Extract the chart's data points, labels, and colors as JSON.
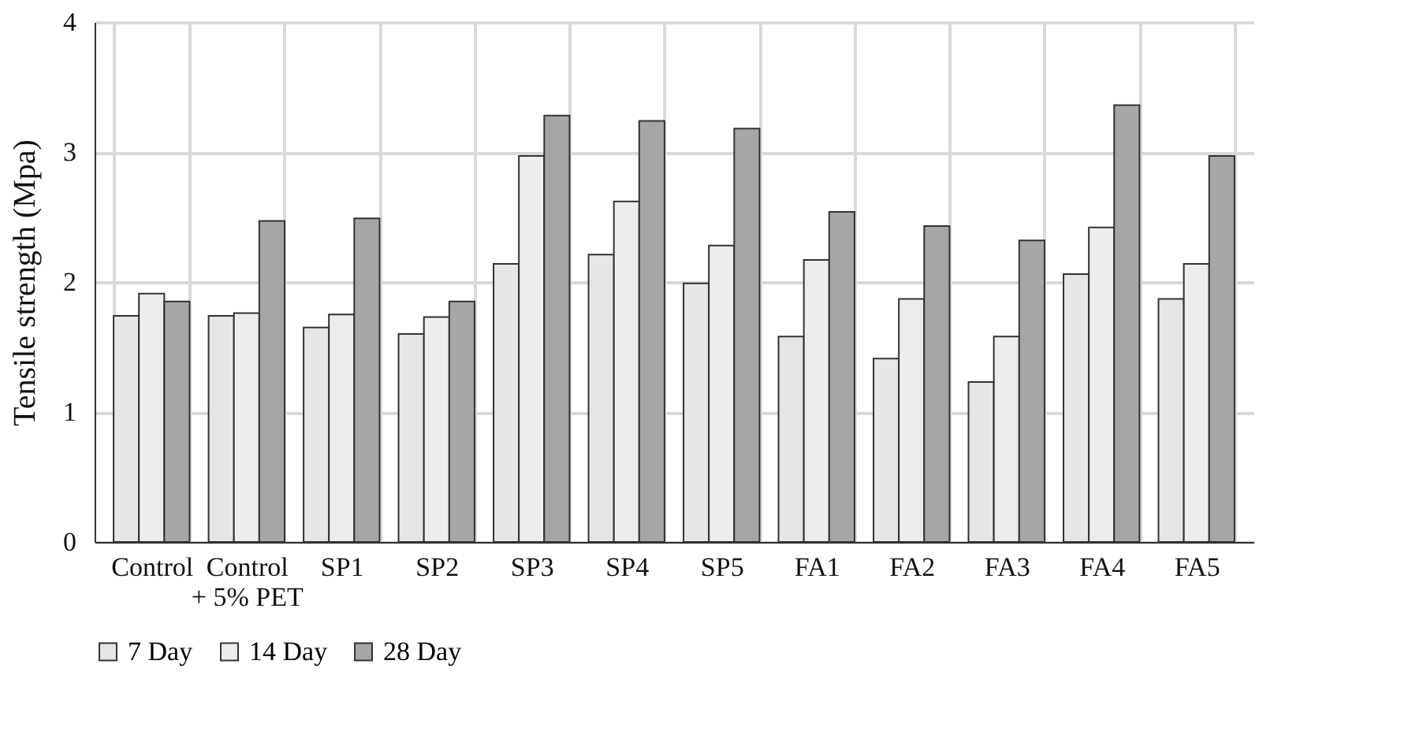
{
  "chart_data": {
    "type": "bar",
    "ylabel": "Tensile strength (Mpa)",
    "categories": [
      "Control",
      "Control + 5% PET",
      "SP1",
      "SP2",
      "SP3",
      "SP4",
      "SP5",
      "FA1",
      "FA2",
      "FA3",
      "FA4",
      "FA5"
    ],
    "series": [
      {
        "name": "7 Day",
        "color": "#e6e6e6",
        "values": [
          1.74,
          1.74,
          1.65,
          1.6,
          2.14,
          2.21,
          1.99,
          1.58,
          1.41,
          1.23,
          2.06,
          1.87
        ]
      },
      {
        "name": "14 Day",
        "color": "#ededed",
        "values": [
          1.91,
          1.76,
          1.75,
          1.73,
          2.97,
          2.62,
          2.28,
          2.17,
          1.87,
          1.58,
          2.42,
          2.14
        ]
      },
      {
        "name": "28 Day",
        "color": "#a6a6a6",
        "values": [
          1.85,
          2.47,
          2.49,
          1.85,
          3.28,
          3.24,
          3.18,
          2.54,
          2.43,
          2.32,
          3.36,
          2.97
        ]
      }
    ],
    "ylim": [
      0,
      4
    ],
    "yticks": [
      0,
      1,
      2,
      3,
      4
    ],
    "grid": true,
    "legend": "bottom"
  }
}
